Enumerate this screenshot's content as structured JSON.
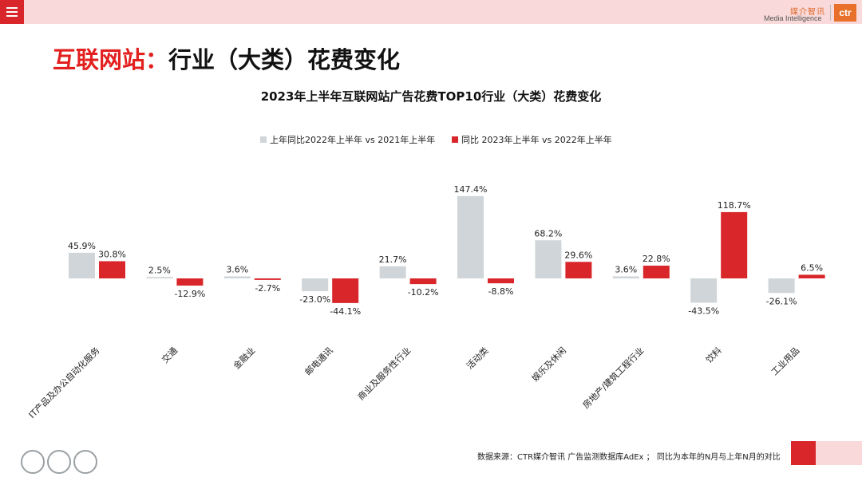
{
  "header": {
    "brand_cn": "媒介智讯",
    "brand_en": "Media Intelligence",
    "brand_mark": "ctr"
  },
  "page_title": {
    "prefix": "互联网站",
    "colon": "：",
    "suffix": "行业（大类）花费变化"
  },
  "footer": {
    "note": "数据来源：CTR媒介智讯 广告监测数据库AdEx ； 同比为本年的N月与上年N月的对比"
  },
  "colors": {
    "series_prev": "#cfd5d8",
    "series_curr": "#d8262a",
    "accent": "#e2201f"
  },
  "chart_data": {
    "type": "bar",
    "title": "2023年上半年互联网站广告花费TOP10行业（大类）花费变化",
    "legend_position": "top",
    "categories": [
      "IT产品及办公自动化服务",
      "交通",
      "金融业",
      "邮电通讯",
      "商业及服务性行业",
      "活动类",
      "娱乐及休闲",
      "房地产/建筑工程行业",
      "饮料",
      "工业用品"
    ],
    "series": [
      {
        "name": "上年同比2022年上半年  vs 2021年上半年",
        "values": [
          45.9,
          2.5,
          3.6,
          -23.0,
          21.7,
          147.4,
          68.2,
          3.6,
          -43.5,
          -26.1
        ],
        "labels": [
          "45.9%",
          "2.5%",
          "3.6%",
          "-23.0%",
          "21.7%",
          "147.4%",
          "68.2%",
          "3.6%",
          "-43.5%",
          "-26.1%"
        ]
      },
      {
        "name": "同比 2023年上半年  vs 2022年上半年",
        "values": [
          30.8,
          -12.9,
          -2.7,
          -44.1,
          -10.2,
          -8.8,
          29.6,
          22.8,
          118.7,
          6.5
        ],
        "labels": [
          "30.8%",
          "-12.9%",
          "-2.7%",
          "-44.1%",
          "-10.2%",
          "-8.8%",
          "29.6%",
          "22.8%",
          "118.7%",
          "6.5%"
        ]
      }
    ]
  }
}
